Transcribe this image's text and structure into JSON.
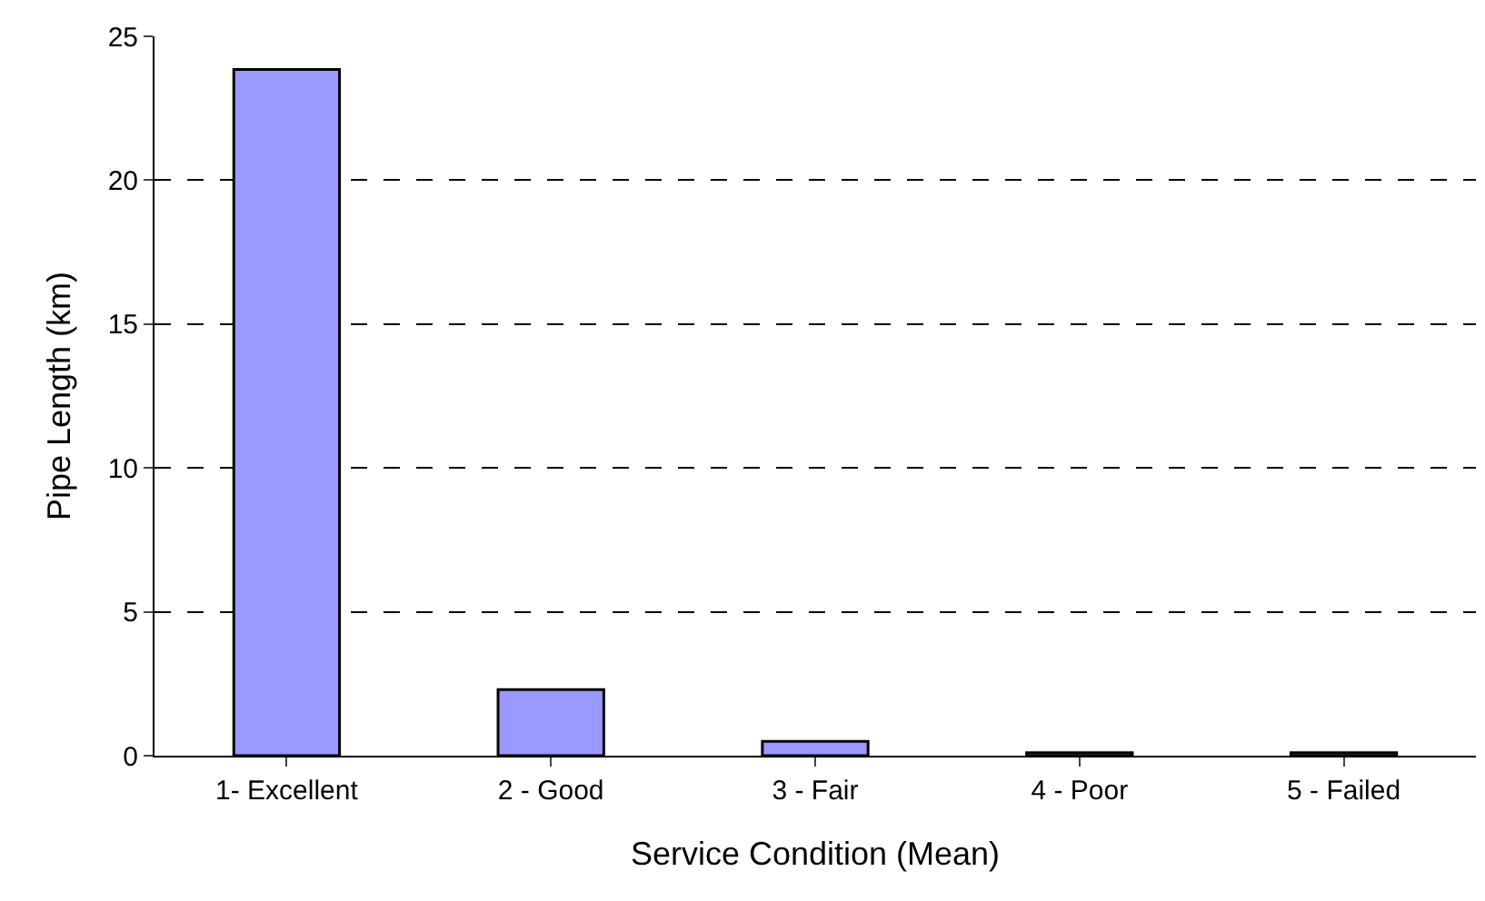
{
  "chart_data": {
    "type": "bar",
    "xlabel": "Service Condition (Mean)",
    "ylabel": "Pipe Length (km)",
    "categories": [
      "1- Excellent",
      "2 - Good",
      "3 - Fair",
      "4 - Poor",
      "5 - Failed"
    ],
    "values": [
      23.85,
      2.3,
      0.5,
      0.1,
      0.1
    ],
    "color": "#9999ff",
    "ylim": [
      0,
      25
    ],
    "yticks": [
      0,
      5,
      10,
      15,
      20,
      25
    ],
    "grid": "y",
    "legend": false
  }
}
